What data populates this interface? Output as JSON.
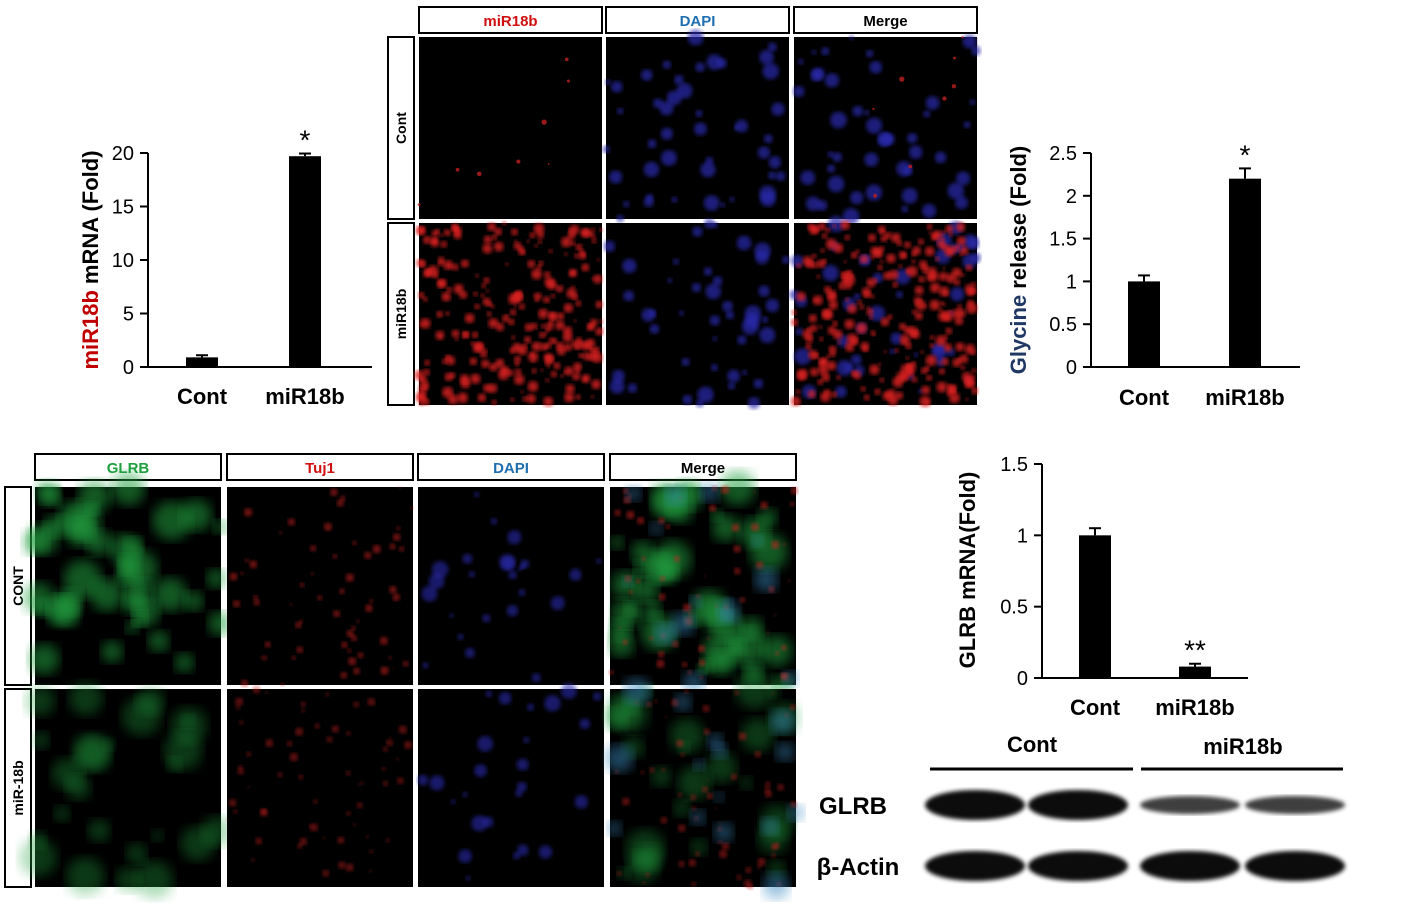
{
  "chart_data": [
    {
      "type": "bar",
      "y_label": {
        "highlight": "miR18b",
        "rest": "mRNA (Fold)",
        "highlight_color": "#c00000"
      },
      "categories": [
        "Cont",
        "miR18b"
      ],
      "values": [
        0.9,
        19.7
      ],
      "errors": [
        0.2,
        0.25
      ],
      "significance": [
        null,
        "*"
      ],
      "color": "#000000",
      "ylim": [
        0,
        20
      ],
      "yticks": [
        0,
        5,
        10,
        15,
        20
      ]
    },
    {
      "type": "bar",
      "y_label": {
        "highlight": "Glycine",
        "rest": "release (Fold)",
        "highlight_color": "#1f3864"
      },
      "categories": [
        "Cont",
        "miR18b"
      ],
      "values": [
        1.0,
        2.2
      ],
      "errors": [
        0.07,
        0.12
      ],
      "significance": [
        null,
        "*"
      ],
      "color": "#000000",
      "ylim": [
        0,
        2.5
      ],
      "yticks": [
        0,
        0.5,
        1,
        1.5,
        2,
        2.5
      ]
    },
    {
      "type": "bar",
      "y_label": "GLRB mRNA(Fold)",
      "categories": [
        "Cont",
        "miR18b"
      ],
      "values": [
        1.0,
        0.08
      ],
      "errors": [
        0.05,
        0.02
      ],
      "significance": [
        null,
        "**"
      ],
      "color": "#000000",
      "ylim": [
        0,
        1.5
      ],
      "yticks": [
        0,
        0.5,
        1,
        1.5
      ]
    }
  ],
  "image_panel_top": {
    "columns": [
      "miR18b",
      "DAPI",
      "Merge"
    ],
    "rows": [
      "Cont",
      "miR18b"
    ]
  },
  "image_panel_bottom": {
    "columns": [
      "GLRB",
      "Tuj1",
      "DAPI",
      "Merge"
    ],
    "rows": [
      "CONT",
      "miR-18b"
    ]
  },
  "western_blot": {
    "groups": [
      "Cont",
      "miR18b"
    ],
    "rows": [
      "GLRB",
      "β-Actin"
    ]
  }
}
